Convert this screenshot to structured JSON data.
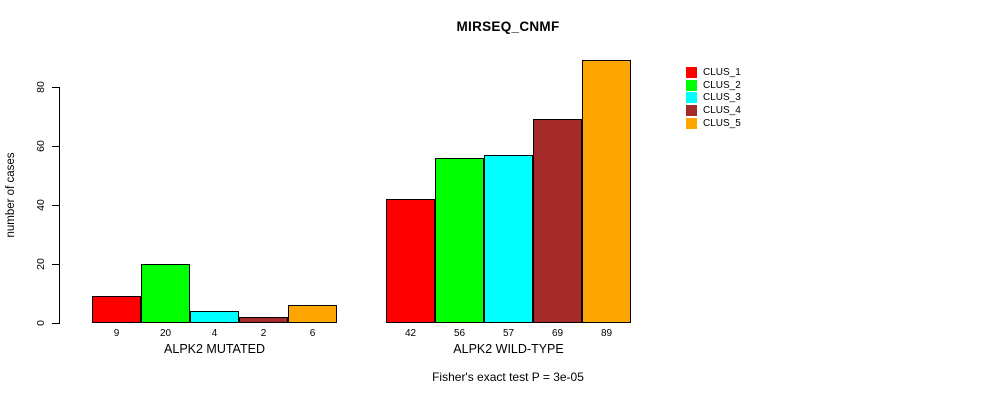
{
  "chart_data": {
    "type": "bar",
    "title": "MIRSEQ_CNMF",
    "ylabel": "number of cases",
    "xlabel": "",
    "categories": [
      "ALPK2 MUTATED",
      "ALPK2 WILD-TYPE"
    ],
    "series": [
      {
        "name": "CLUS_1",
        "color": "#FF0000",
        "values": [
          9,
          42
        ]
      },
      {
        "name": "CLUS_2",
        "color": "#00FF00",
        "values": [
          20,
          56
        ]
      },
      {
        "name": "CLUS_3",
        "color": "#00FFFF",
        "values": [
          4,
          57
        ]
      },
      {
        "name": "CLUS_4",
        "color": "#A52A2A",
        "values": [
          2,
          69
        ]
      },
      {
        "name": "CLUS_5",
        "color": "#FFA500",
        "values": [
          6,
          89
        ]
      }
    ],
    "yticks": [
      0,
      20,
      40,
      60,
      80
    ],
    "ylim": [
      0,
      89
    ],
    "grid": false,
    "legend_position": "right",
    "bar_value_labels": true,
    "annotation": "Fisher's exact test P = 3e-05"
  }
}
